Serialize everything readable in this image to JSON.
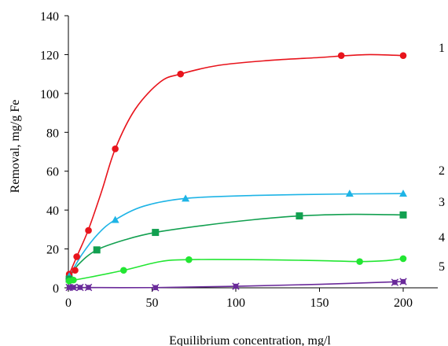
{
  "chart_data": {
    "type": "line",
    "xlabel": "Equilibrium concentration, mg/l",
    "ylabel": "Removal, mg/g Fe",
    "xlim": [
      0,
      200
    ],
    "ylim": [
      0,
      140
    ],
    "xticks": [
      "0",
      "50",
      "100",
      "150",
      "200"
    ],
    "xtick_values": [
      0,
      50,
      100,
      150,
      200
    ],
    "yticks": [
      "0",
      "20",
      "40",
      "60",
      "80",
      "100",
      "120",
      "140"
    ],
    "ytick_values": [
      0,
      20,
      40,
      60,
      80,
      100,
      120,
      140
    ],
    "grid": false,
    "series": [
      {
        "name": "1",
        "color": "#e8141c",
        "marker": "circle",
        "points": [
          [
            0.5,
            7
          ],
          [
            4,
            9
          ],
          [
            5,
            16
          ],
          [
            12,
            29.5
          ],
          [
            28,
            71.5
          ],
          [
            67,
            110
          ],
          [
            163,
            119.5
          ],
          [
            200,
            119.5
          ]
        ],
        "curve": [
          [
            0,
            6
          ],
          [
            5,
            16
          ],
          [
            12,
            30
          ],
          [
            20,
            50
          ],
          [
            28,
            71.5
          ],
          [
            40,
            92
          ],
          [
            55,
            106
          ],
          [
            67,
            110
          ],
          [
            90,
            114.5
          ],
          [
            120,
            117
          ],
          [
            150,
            118.5
          ],
          [
            163,
            119.3
          ],
          [
            180,
            120
          ],
          [
            200,
            119.5
          ]
        ]
      },
      {
        "name": "2",
        "color": "#1eb4e6",
        "marker": "triangle",
        "points": [
          [
            0.5,
            6
          ],
          [
            28,
            35
          ],
          [
            70,
            46
          ],
          [
            168,
            48.5
          ],
          [
            200,
            48.5
          ]
        ],
        "curve": [
          [
            0,
            5
          ],
          [
            8,
            17
          ],
          [
            18,
            28
          ],
          [
            28,
            35
          ],
          [
            45,
            42
          ],
          [
            70,
            46
          ],
          [
            110,
            47.5
          ],
          [
            168,
            48.3
          ],
          [
            200,
            48.5
          ]
        ]
      },
      {
        "name": "3",
        "color": "#12a050",
        "marker": "square",
        "points": [
          [
            0.5,
            4.5
          ],
          [
            17,
            19.5
          ],
          [
            52,
            28.5
          ],
          [
            138,
            37
          ],
          [
            200,
            37.5
          ]
        ],
        "curve": [
          [
            0,
            4.5
          ],
          [
            6,
            12
          ],
          [
            17,
            19.5
          ],
          [
            35,
            25
          ],
          [
            52,
            28.5
          ],
          [
            80,
            32
          ],
          [
            110,
            35
          ],
          [
            138,
            37
          ],
          [
            170,
            37.8
          ],
          [
            200,
            37.5
          ]
        ]
      },
      {
        "name": "4",
        "color": "#22e632",
        "marker": "circle",
        "points": [
          [
            0.5,
            3.5
          ],
          [
            3,
            4
          ],
          [
            33,
            9
          ],
          [
            72,
            14.5
          ],
          [
            174,
            13.5
          ],
          [
            200,
            15
          ]
        ],
        "curve": [
          [
            0,
            3.5
          ],
          [
            10,
            5
          ],
          [
            33,
            9
          ],
          [
            55,
            13.5
          ],
          [
            72,
            14.5
          ],
          [
            110,
            14.5
          ],
          [
            150,
            14
          ],
          [
            174,
            13.5
          ],
          [
            190,
            14
          ],
          [
            200,
            15
          ]
        ]
      },
      {
        "name": "5",
        "color": "#6a2a9a",
        "marker": "x",
        "points": [
          [
            0.5,
            0.2
          ],
          [
            3,
            0.2
          ],
          [
            7,
            0.2
          ],
          [
            12,
            0.2
          ],
          [
            52,
            0.1
          ],
          [
            100,
            0.8
          ],
          [
            195,
            2.8
          ],
          [
            200,
            3.2
          ]
        ],
        "curve": [
          [
            0,
            0.2
          ],
          [
            50,
            0.1
          ],
          [
            100,
            0.8
          ],
          [
            150,
            1.8
          ],
          [
            200,
            3.2
          ]
        ]
      }
    ]
  }
}
